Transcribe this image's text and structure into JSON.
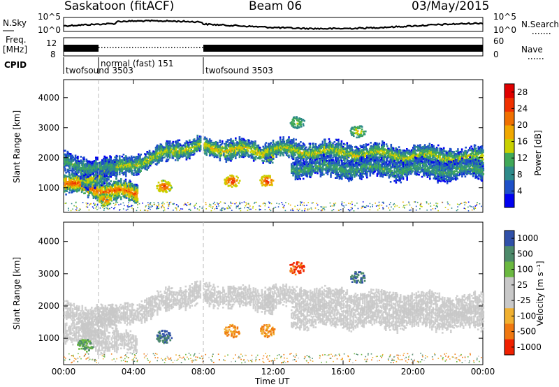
{
  "header": {
    "station": "Saskatoon (fitACF)",
    "beam": "Beam 06",
    "date": "03/May/2015"
  },
  "nsky_panel": {
    "label": "N.Sky",
    "ticks": [
      "10^5",
      "10^0"
    ],
    "right_ticks": [
      "10^5",
      "10^0"
    ],
    "right_label": "N.Search"
  },
  "freq_panel": {
    "label_line1": "Freq.",
    "label_line2": "[MHz]",
    "ticks": [
      "12",
      "8"
    ],
    "right_ticks": [
      "60",
      "0"
    ],
    "right_label": "Nave"
  },
  "cpid_panel": {
    "label": "CPID",
    "segments": [
      {
        "name": "twofsound 3503",
        "start_hour": 0,
        "end_hour": 2
      },
      {
        "name": "normal (fast) 151",
        "start_hour": 2,
        "end_hour": 8
      },
      {
        "name": "twofsound 3503",
        "start_hour": 8,
        "end_hour": 24
      }
    ]
  },
  "chart_data": [
    {
      "type": "heatmap",
      "panel": "power",
      "ylabel": "Slant Range [km]",
      "ylim": [
        180,
        4600
      ],
      "yticks": [
        "1000",
        "2000",
        "3000",
        "4000"
      ],
      "ytick_values": [
        1000,
        2000,
        3000,
        4000
      ],
      "xlim": [
        0,
        24
      ],
      "colorbar": {
        "label": "Power [dB]",
        "ticks": [
          "28",
          "24",
          "20",
          "16",
          "12",
          "8",
          "4"
        ],
        "tick_values": [
          28,
          24,
          20,
          16,
          12,
          8,
          4
        ],
        "colors": [
          "#0000f0",
          "#1e50c8",
          "#2e8a8a",
          "#40a858",
          "#c8d000",
          "#f0a800",
          "#f07000",
          "#f03000",
          "#e00000"
        ],
        "range": [
          0,
          30
        ]
      },
      "echo_bands": [
        {
          "start_hour": 0.0,
          "end_hour": 4.2,
          "range_start_km": 1150,
          "range_end_km": 800,
          "peak_db": 22
        },
        {
          "start_hour": 1.0,
          "end_hour": 7.8,
          "range_start_km": 1300,
          "range_end_km": 2500,
          "peak_db": 14
        },
        {
          "start_hour": 0.0,
          "end_hour": 3.0,
          "range_start_km": 1850,
          "range_end_km": 1600,
          "peak_db": 10
        },
        {
          "start_hour": 8.0,
          "end_hour": 12.0,
          "range_start_km": 2400,
          "range_end_km": 2150,
          "peak_db": 16
        },
        {
          "start_hour": 11.5,
          "end_hour": 24.0,
          "range_start_km": 2300,
          "range_end_km": 2000,
          "peak_db": 14
        },
        {
          "start_hour": 13.0,
          "end_hour": 24.0,
          "range_start_km": 1700,
          "range_end_km": 1600,
          "peak_db": 10
        }
      ],
      "echo_patches": [
        {
          "hour": 5.7,
          "range_km": 1070,
          "peak_db": 26
        },
        {
          "hour": 9.6,
          "range_km": 1250,
          "peak_db": 28
        },
        {
          "hour": 11.6,
          "range_km": 1250,
          "peak_db": 28
        },
        {
          "hour": 13.3,
          "range_km": 3200,
          "peak_db": 16
        },
        {
          "hour": 16.8,
          "range_km": 2900,
          "peak_db": 18
        },
        {
          "hour": 2.3,
          "range_km": 620,
          "peak_db": 24
        }
      ]
    },
    {
      "type": "heatmap",
      "panel": "velocity",
      "ylabel": "Slant Range [km]",
      "ylim": [
        180,
        4600
      ],
      "yticks": [
        "1000",
        "2000",
        "3000",
        "4000"
      ],
      "ytick_values": [
        1000,
        2000,
        3000,
        4000
      ],
      "xlim": [
        0,
        24
      ],
      "xticks": [
        "00:00",
        "04:00",
        "08:00",
        "12:00",
        "16:00",
        "20:00",
        "00:00"
      ],
      "xtick_values": [
        0,
        4,
        8,
        12,
        16,
        20,
        24
      ],
      "xlabel": "Time UT",
      "colorbar": {
        "label": "Velocity [m s⁻¹]",
        "ticks": [
          "1000",
          "500",
          "100",
          "25",
          "-25",
          "-100",
          "-500",
          "-1000"
        ],
        "tick_values": [
          1000,
          500,
          100,
          25,
          -25,
          -100,
          -500,
          -1000
        ],
        "colors": [
          "#3050a8",
          "#4d8a6a",
          "#6ab840",
          "#c8c8c8",
          "#c8c8c8",
          "#f0b030",
          "#f07810",
          "#f02000"
        ],
        "ground_scatter_color": "#c8c8c8"
      },
      "echo_patches": [
        {
          "hour": 5.7,
          "range_km": 1070,
          "velocity": 500
        },
        {
          "hour": 9.6,
          "range_km": 1250,
          "velocity": -100
        },
        {
          "hour": 11.6,
          "range_km": 1250,
          "velocity": -100
        },
        {
          "hour": 13.3,
          "range_km": 3200,
          "velocity": -500
        },
        {
          "hour": 16.8,
          "range_km": 2900,
          "velocity": 500
        },
        {
          "hour": 1.2,
          "range_km": 800,
          "velocity": 100
        }
      ]
    }
  ]
}
